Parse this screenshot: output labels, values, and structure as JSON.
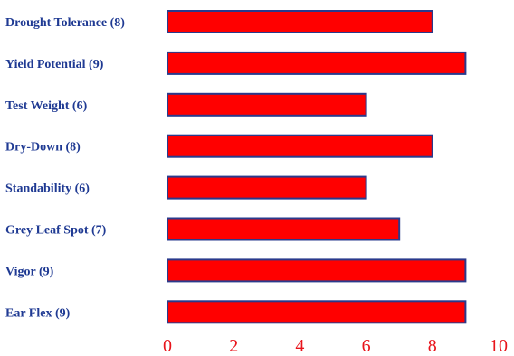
{
  "chart_data": {
    "type": "bar",
    "orientation": "horizontal",
    "categories": [
      "Drought Tolerance (8)",
      "Yield Potential (9)",
      "Test Weight (6)",
      "Dry-Down (8)",
      "Standability (6)",
      "Grey Leaf Spot (7)",
      "Vigor (9)",
      "Ear Flex (9)"
    ],
    "values": [
      8,
      9,
      6,
      8,
      6,
      7,
      9,
      9
    ],
    "xlim": [
      0,
      10
    ],
    "xticks": [
      "0",
      "2",
      "4",
      "6",
      "8",
      "10"
    ],
    "grid": false,
    "legend": "none",
    "colors": {
      "bar_fill": "#ff0000",
      "bar_stroke": "#2a3a8c",
      "label_text": "#1f3a93",
      "tick_text": "#e8141b"
    }
  }
}
